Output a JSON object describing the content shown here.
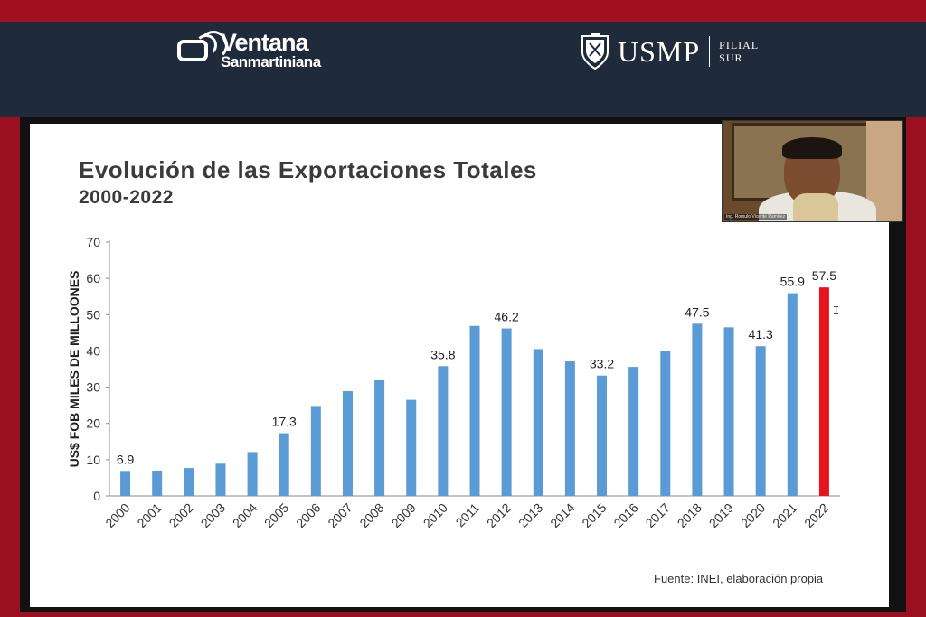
{
  "header": {
    "brand_line1": "Ventana",
    "brand_line2": "Sanmartiniana",
    "university": "USMP",
    "filial_line1": "FILIAL",
    "filial_line2": "SUR"
  },
  "video": {
    "caption": "Ing. Romulo Vicente Ramírez"
  },
  "colors": {
    "bar": "#5b9bd5",
    "highlight": "#e8141c",
    "header_bg": "#1f2a3a",
    "border": "#a3111f"
  },
  "chart_data": {
    "type": "bar",
    "title": "Evolución de las Exportaciones Totales",
    "subtitle": "2000-2022",
    "ylabel": "US$ FOB MILES DE MILLOONES",
    "xlabel": "",
    "source": "Fuente: INEI, elaboración propia",
    "ylim": [
      0,
      70
    ],
    "yticks": [
      0,
      10,
      20,
      30,
      40,
      50,
      60,
      70
    ],
    "categories": [
      "2000",
      "2001",
      "2002",
      "2003",
      "2004",
      "2005",
      "2006",
      "2007",
      "2008",
      "2009",
      "2010",
      "2011",
      "2012",
      "2013",
      "2014",
      "2015",
      "2016",
      "2017",
      "2018",
      "2019",
      "2020",
      "2021",
      "2022"
    ],
    "values": [
      6.9,
      7.0,
      7.7,
      8.9,
      12.1,
      17.3,
      24.8,
      28.9,
      31.9,
      26.5,
      35.8,
      46.9,
      46.2,
      40.5,
      37.1,
      33.2,
      35.6,
      40.1,
      47.5,
      46.5,
      41.3,
      55.9,
      57.5
    ],
    "data_labels": {
      "0": "6.9",
      "5": "17.3",
      "10": "35.8",
      "12": "46.2",
      "15": "33.2",
      "18": "47.5",
      "20": "41.3",
      "21": "55.9",
      "22": "57.5"
    },
    "highlight_index": 22,
    "grid": false,
    "legend": "none"
  }
}
